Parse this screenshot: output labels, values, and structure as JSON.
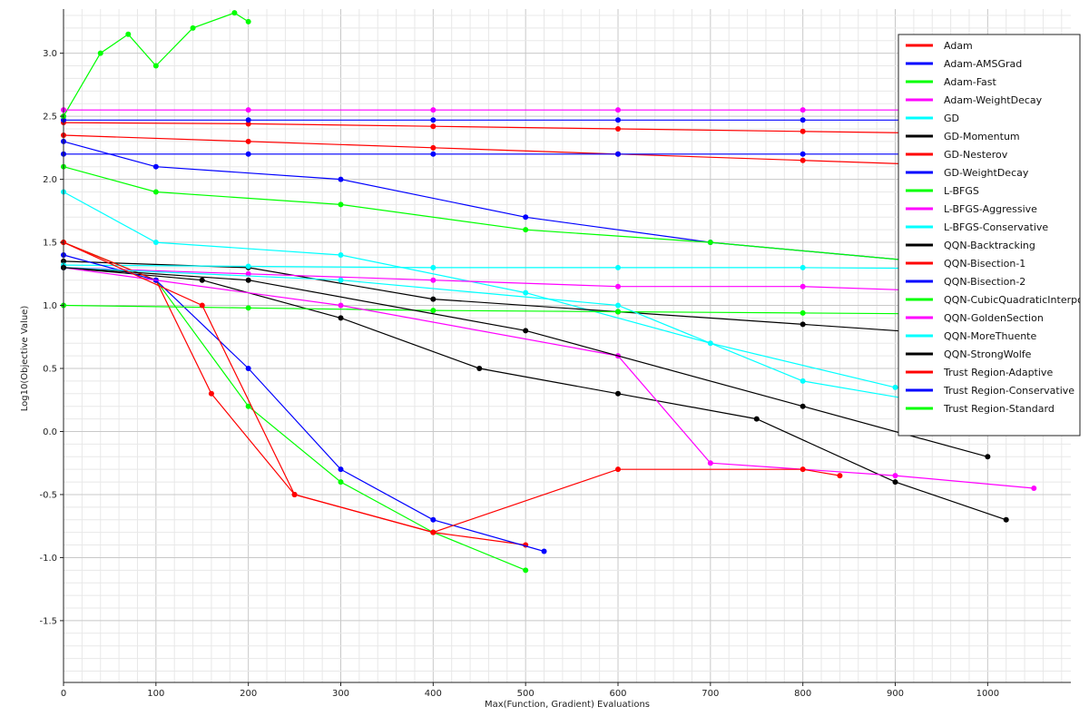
{
  "chart_data": {
    "type": "line",
    "title": "",
    "xlabel": "Max(Function, Gradient) Evaluations",
    "ylabel": "Log10(Objective Value)",
    "xlim": [
      0,
      1090
    ],
    "ylim": [
      -1.99,
      3.35
    ],
    "x_ticks": [
      0,
      100,
      200,
      300,
      400,
      500,
      600,
      700,
      800,
      900,
      1000
    ],
    "y_ticks": [
      -1.5,
      -1.0,
      -0.5,
      0.0,
      0.5,
      1.0,
      1.5,
      2.0,
      2.5,
      3.0
    ],
    "x_tick_labels": [
      "0",
      "100",
      "200",
      "300",
      "400",
      "500",
      "600",
      "700",
      "800",
      "900",
      "1000"
    ],
    "y_tick_labels": [
      "-1.5",
      "-1.0",
      "-0.5",
      "0.0",
      "0.5",
      "1.0",
      "1.5",
      "2.0",
      "2.5",
      "3.0"
    ],
    "grid": true,
    "legend_position": "top-right",
    "series": [
      {
        "name": "Adam",
        "color": "#ff0000",
        "x": [
          0,
          200,
          400,
          600,
          800,
          1000
        ],
        "y": [
          2.45,
          2.44,
          2.42,
          2.4,
          2.38,
          2.36
        ]
      },
      {
        "name": "Adam-AMSGrad",
        "color": "#0000ff",
        "x": [
          0,
          200,
          400,
          600,
          800,
          1000
        ],
        "y": [
          2.47,
          2.47,
          2.47,
          2.47,
          2.47,
          2.47
        ]
      },
      {
        "name": "Adam-Fast",
        "color": "#00ff00",
        "x": [
          0,
          40,
          70,
          100,
          140,
          185,
          200
        ],
        "y": [
          2.5,
          3.0,
          3.15,
          2.9,
          3.2,
          3.32,
          3.25
        ]
      },
      {
        "name": "Adam-WeightDecay",
        "color": "#ff00ff",
        "x": [
          0,
          200,
          400,
          600,
          800,
          1000
        ],
        "y": [
          2.55,
          2.55,
          2.55,
          2.55,
          2.55,
          2.55
        ]
      },
      {
        "name": "GD",
        "color": "#00ffff",
        "x": [
          0,
          100,
          300,
          500,
          700,
          900,
          1000
        ],
        "y": [
          1.9,
          1.5,
          1.4,
          1.1,
          0.7,
          0.35,
          0.25
        ]
      },
      {
        "name": "GD-Momentum",
        "color": "#000000",
        "x": [
          0,
          200,
          400,
          600,
          800,
          1000
        ],
        "y": [
          1.35,
          1.3,
          1.05,
          0.95,
          0.85,
          0.75
        ]
      },
      {
        "name": "GD-Nesterov",
        "color": "#ff0000",
        "x": [
          0,
          200,
          400,
          600,
          800,
          1000
        ],
        "y": [
          2.35,
          2.3,
          2.25,
          2.2,
          2.15,
          2.1
        ]
      },
      {
        "name": "GD-WeightDecay",
        "color": "#0000ff",
        "x": [
          0,
          200,
          400,
          600,
          800,
          1000
        ],
        "y": [
          2.2,
          2.2,
          2.2,
          2.2,
          2.2,
          2.2
        ]
      },
      {
        "name": "L-BFGS",
        "color": "#00ff00",
        "x": [
          0,
          100,
          200,
          300,
          400,
          500
        ],
        "y": [
          1.5,
          1.2,
          0.2,
          -0.4,
          -0.8,
          -1.1
        ]
      },
      {
        "name": "L-BFGS-Aggressive",
        "color": "#ff00ff",
        "x": [
          0,
          200,
          400,
          600,
          800,
          1000
        ],
        "y": [
          1.3,
          1.25,
          1.2,
          1.15,
          1.15,
          1.1
        ]
      },
      {
        "name": "L-BFGS-Conservative",
        "color": "#00ffff",
        "x": [
          0,
          200,
          400,
          600,
          800,
          1000
        ],
        "y": [
          1.32,
          1.31,
          1.3,
          1.3,
          1.3,
          1.29
        ]
      },
      {
        "name": "QQN-Backtracking",
        "color": "#000000",
        "x": [
          0,
          150,
          300,
          450,
          600,
          750,
          900,
          1020
        ],
        "y": [
          1.3,
          1.2,
          0.9,
          0.5,
          0.3,
          0.1,
          -0.4,
          -0.7
        ]
      },
      {
        "name": "QQN-Bisection-1",
        "color": "#ff0000",
        "x": [
          0,
          100,
          160,
          250,
          400,
          500
        ],
        "y": [
          1.5,
          1.2,
          0.3,
          -0.5,
          -0.8,
          -0.9
        ]
      },
      {
        "name": "QQN-Bisection-2",
        "color": "#0000ff",
        "x": [
          0,
          100,
          200,
          300,
          400,
          520
        ],
        "y": [
          1.4,
          1.2,
          0.5,
          -0.3,
          -0.7,
          -0.95
        ]
      },
      {
        "name": "QQN-CubicQuadraticInterpolation",
        "color": "#00ff00",
        "x": [
          0,
          200,
          400,
          600,
          800,
          1000
        ],
        "y": [
          1.0,
          0.98,
          0.96,
          0.95,
          0.94,
          0.93
        ]
      },
      {
        "name": "QQN-GoldenSection",
        "color": "#ff00ff",
        "x": [
          0,
          300,
          600,
          700,
          900,
          1050
        ],
        "y": [
          1.3,
          1.0,
          0.6,
          -0.25,
          -0.35,
          -0.45
        ]
      },
      {
        "name": "QQN-MoreThuente",
        "color": "#00ffff",
        "x": [
          0,
          300,
          600,
          800,
          1000
        ],
        "y": [
          1.3,
          1.2,
          1.0,
          0.4,
          0.15
        ]
      },
      {
        "name": "QQN-StrongWolfe",
        "color": "#000000",
        "x": [
          0,
          200,
          500,
          800,
          1000
        ],
        "y": [
          1.3,
          1.2,
          0.8,
          0.2,
          -0.2
        ]
      },
      {
        "name": "Trust Region-Adaptive",
        "color": "#ff0000",
        "x": [
          0,
          150,
          250,
          400,
          600,
          800,
          840
        ],
        "y": [
          1.5,
          1.0,
          -0.5,
          -0.8,
          -0.3,
          -0.3,
          -0.35
        ]
      },
      {
        "name": "Trust Region-Conservative",
        "color": "#0000ff",
        "x": [
          0,
          100,
          300,
          500,
          700,
          1000
        ],
        "y": [
          2.3,
          2.1,
          2.0,
          1.7,
          1.5,
          1.3
        ]
      },
      {
        "name": "Trust Region-Standard",
        "color": "#00ff00",
        "x": [
          0,
          100,
          300,
          500,
          700,
          1000
        ],
        "y": [
          2.1,
          1.9,
          1.8,
          1.6,
          1.5,
          1.3
        ]
      }
    ]
  }
}
